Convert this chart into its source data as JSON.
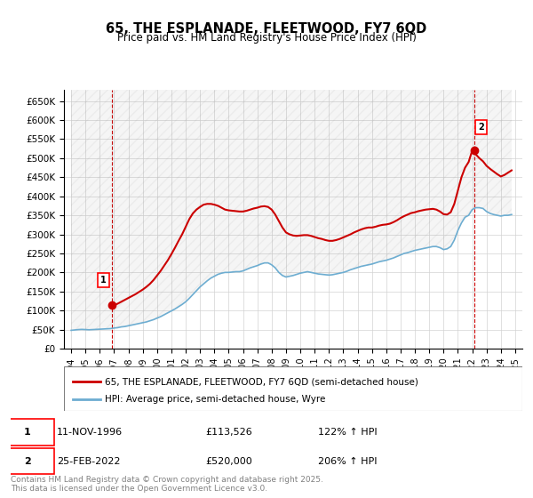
{
  "title": "65, THE ESPLANADE, FLEETWOOD, FY7 6QD",
  "subtitle": "Price paid vs. HM Land Registry's House Price Index (HPI)",
  "legend_line1": "65, THE ESPLANADE, FLEETWOOD, FY7 6QD (semi-detached house)",
  "legend_line2": "HPI: Average price, semi-detached house, Wyre",
  "sale1_label": "1",
  "sale1_date": "11-NOV-1996",
  "sale1_price": "£113,526",
  "sale1_hpi": "122% ↑ HPI",
  "sale2_label": "2",
  "sale2_date": "25-FEB-2022",
  "sale2_price": "£520,000",
  "sale2_hpi": "206% ↑ HPI",
  "footer": "Contains HM Land Registry data © Crown copyright and database right 2025.\nThis data is licensed under the Open Government Licence v3.0.",
  "hpi_color": "#6dadd1",
  "price_color": "#cc0000",
  "marker_color": "#cc0000",
  "ylim": [
    0,
    680000
  ],
  "yticks": [
    0,
    50000,
    100000,
    150000,
    200000,
    250000,
    300000,
    350000,
    400000,
    450000,
    500000,
    550000,
    600000,
    650000
  ],
  "ytick_labels": [
    "£0",
    "£50K",
    "£100K",
    "£150K",
    "£200K",
    "£250K",
    "£300K",
    "£350K",
    "£400K",
    "£450K",
    "£500K",
    "£550K",
    "£600K",
    "£650K"
  ],
  "hpi_dates": [
    1994.0,
    1994.25,
    1994.5,
    1994.75,
    1995.0,
    1995.25,
    1995.5,
    1995.75,
    1996.0,
    1996.25,
    1996.5,
    1996.75,
    1997.0,
    1997.25,
    1997.5,
    1997.75,
    1998.0,
    1998.25,
    1998.5,
    1998.75,
    1999.0,
    1999.25,
    1999.5,
    1999.75,
    2000.0,
    2000.25,
    2000.5,
    2000.75,
    2001.0,
    2001.25,
    2001.5,
    2001.75,
    2002.0,
    2002.25,
    2002.5,
    2002.75,
    2003.0,
    2003.25,
    2003.5,
    2003.75,
    2004.0,
    2004.25,
    2004.5,
    2004.75,
    2005.0,
    2005.25,
    2005.5,
    2005.75,
    2006.0,
    2006.25,
    2006.5,
    2006.75,
    2007.0,
    2007.25,
    2007.5,
    2007.75,
    2008.0,
    2008.25,
    2008.5,
    2008.75,
    2009.0,
    2009.25,
    2009.5,
    2009.75,
    2010.0,
    2010.25,
    2010.5,
    2010.75,
    2011.0,
    2011.25,
    2011.5,
    2011.75,
    2012.0,
    2012.25,
    2012.5,
    2012.75,
    2013.0,
    2013.25,
    2013.5,
    2013.75,
    2014.0,
    2014.25,
    2014.5,
    2014.75,
    2015.0,
    2015.25,
    2015.5,
    2015.75,
    2016.0,
    2016.25,
    2016.5,
    2016.75,
    2017.0,
    2017.25,
    2017.5,
    2017.75,
    2018.0,
    2018.25,
    2018.5,
    2018.75,
    2019.0,
    2019.25,
    2019.5,
    2019.75,
    2020.0,
    2020.25,
    2020.5,
    2020.75,
    2021.0,
    2021.25,
    2021.5,
    2021.75,
    2022.0,
    2022.25,
    2022.5,
    2022.75,
    2023.0,
    2023.25,
    2023.5,
    2023.75,
    2024.0,
    2024.25,
    2024.5,
    2024.75
  ],
  "hpi_values": [
    48000,
    49000,
    50000,
    50500,
    50000,
    49500,
    50000,
    50500,
    51000,
    51500,
    52000,
    52500,
    54000,
    55000,
    57000,
    58000,
    60000,
    62000,
    64000,
    66000,
    68000,
    70000,
    73000,
    76000,
    80000,
    84000,
    89000,
    94000,
    99000,
    104000,
    110000,
    116000,
    123000,
    132000,
    142000,
    152000,
    162000,
    170000,
    178000,
    185000,
    190000,
    195000,
    198000,
    200000,
    200000,
    201000,
    202000,
    202000,
    204000,
    208000,
    212000,
    215000,
    218000,
    222000,
    225000,
    225000,
    220000,
    212000,
    200000,
    192000,
    188000,
    190000,
    192000,
    195000,
    198000,
    200000,
    202000,
    200000,
    198000,
    196000,
    195000,
    194000,
    193000,
    194000,
    196000,
    198000,
    200000,
    203000,
    207000,
    210000,
    213000,
    216000,
    218000,
    220000,
    222000,
    225000,
    228000,
    230000,
    232000,
    235000,
    238000,
    242000,
    246000,
    250000,
    252000,
    255000,
    258000,
    260000,
    262000,
    264000,
    266000,
    268000,
    268000,
    265000,
    260000,
    262000,
    268000,
    285000,
    310000,
    330000,
    345000,
    350000,
    365000,
    370000,
    370000,
    368000,
    360000,
    355000,
    352000,
    350000,
    348000,
    350000,
    350000,
    352000
  ],
  "price_dates": [
    1994.0,
    1994.25,
    1994.5,
    1994.75,
    1995.0,
    1995.25,
    1995.5,
    1995.75,
    1996.0,
    1996.25,
    1996.5,
    1996.75,
    1997.0,
    1997.25,
    1997.5,
    1997.75,
    1998.0,
    1998.25,
    1998.5,
    1998.75,
    1999.0,
    1999.25,
    1999.5,
    1999.75,
    2000.0,
    2000.25,
    2000.5,
    2000.75,
    2001.0,
    2001.25,
    2001.5,
    2001.75,
    2002.0,
    2002.25,
    2002.5,
    2002.75,
    2003.0,
    2003.25,
    2003.5,
    2003.75,
    2004.0,
    2004.25,
    2004.5,
    2004.75,
    2005.0,
    2005.25,
    2005.5,
    2005.75,
    2006.0,
    2006.25,
    2006.5,
    2006.75,
    2007.0,
    2007.25,
    2007.5,
    2007.75,
    2008.0,
    2008.25,
    2008.5,
    2008.75,
    2009.0,
    2009.25,
    2009.5,
    2009.75,
    2010.0,
    2010.25,
    2010.5,
    2010.75,
    2011.0,
    2011.25,
    2011.5,
    2011.75,
    2012.0,
    2012.25,
    2012.5,
    2012.75,
    2013.0,
    2013.25,
    2013.5,
    2013.75,
    2014.0,
    2014.25,
    2014.5,
    2014.75,
    2015.0,
    2015.25,
    2015.5,
    2015.75,
    2016.0,
    2016.25,
    2016.5,
    2016.75,
    2017.0,
    2017.25,
    2017.5,
    2017.75,
    2018.0,
    2018.25,
    2018.5,
    2018.75,
    2019.0,
    2019.25,
    2019.5,
    2019.75,
    2020.0,
    2020.25,
    2020.5,
    2020.75,
    2021.0,
    2021.25,
    2021.5,
    2021.75,
    2022.0,
    2022.25,
    2022.5,
    2022.75,
    2023.0,
    2023.25,
    2023.5,
    2023.75,
    2024.0,
    2024.25,
    2024.5,
    2024.75
  ],
  "price_values": [
    null,
    null,
    null,
    null,
    null,
    null,
    null,
    null,
    null,
    null,
    null,
    null,
    113526,
    118000,
    123000,
    128000,
    133000,
    138000,
    143000,
    149000,
    155000,
    162000,
    170000,
    180000,
    192000,
    204000,
    218000,
    232000,
    248000,
    265000,
    283000,
    300000,
    320000,
    340000,
    355000,
    365000,
    372000,
    378000,
    380000,
    380000,
    378000,
    375000,
    370000,
    365000,
    363000,
    362000,
    361000,
    360000,
    360000,
    362000,
    365000,
    368000,
    370000,
    373000,
    374000,
    372000,
    365000,
    352000,
    335000,
    318000,
    305000,
    300000,
    297000,
    296000,
    297000,
    298000,
    298000,
    296000,
    293000,
    290000,
    288000,
    285000,
    283000,
    283000,
    285000,
    288000,
    292000,
    296000,
    300000,
    305000,
    309000,
    313000,
    316000,
    318000,
    318000,
    320000,
    323000,
    325000,
    326000,
    328000,
    332000,
    337000,
    343000,
    348000,
    352000,
    356000,
    358000,
    361000,
    363000,
    365000,
    366000,
    367000,
    365000,
    360000,
    353000,
    352000,
    358000,
    380000,
    415000,
    450000,
    475000,
    490000,
    520000,
    510000,
    500000,
    492000,
    480000,
    472000,
    465000,
    458000,
    452000,
    456000,
    462000,
    468000
  ],
  "sale1_x": 1996.833,
  "sale1_y": 113526,
  "sale2_x": 2022.125,
  "sale2_y": 520000,
  "xlim": [
    1993.5,
    2025.5
  ],
  "xticks": [
    1994,
    1995,
    1996,
    1997,
    1998,
    1999,
    2000,
    2001,
    2002,
    2003,
    2004,
    2005,
    2006,
    2007,
    2008,
    2009,
    2010,
    2011,
    2012,
    2013,
    2014,
    2015,
    2016,
    2017,
    2018,
    2019,
    2020,
    2021,
    2022,
    2023,
    2024,
    2025
  ]
}
